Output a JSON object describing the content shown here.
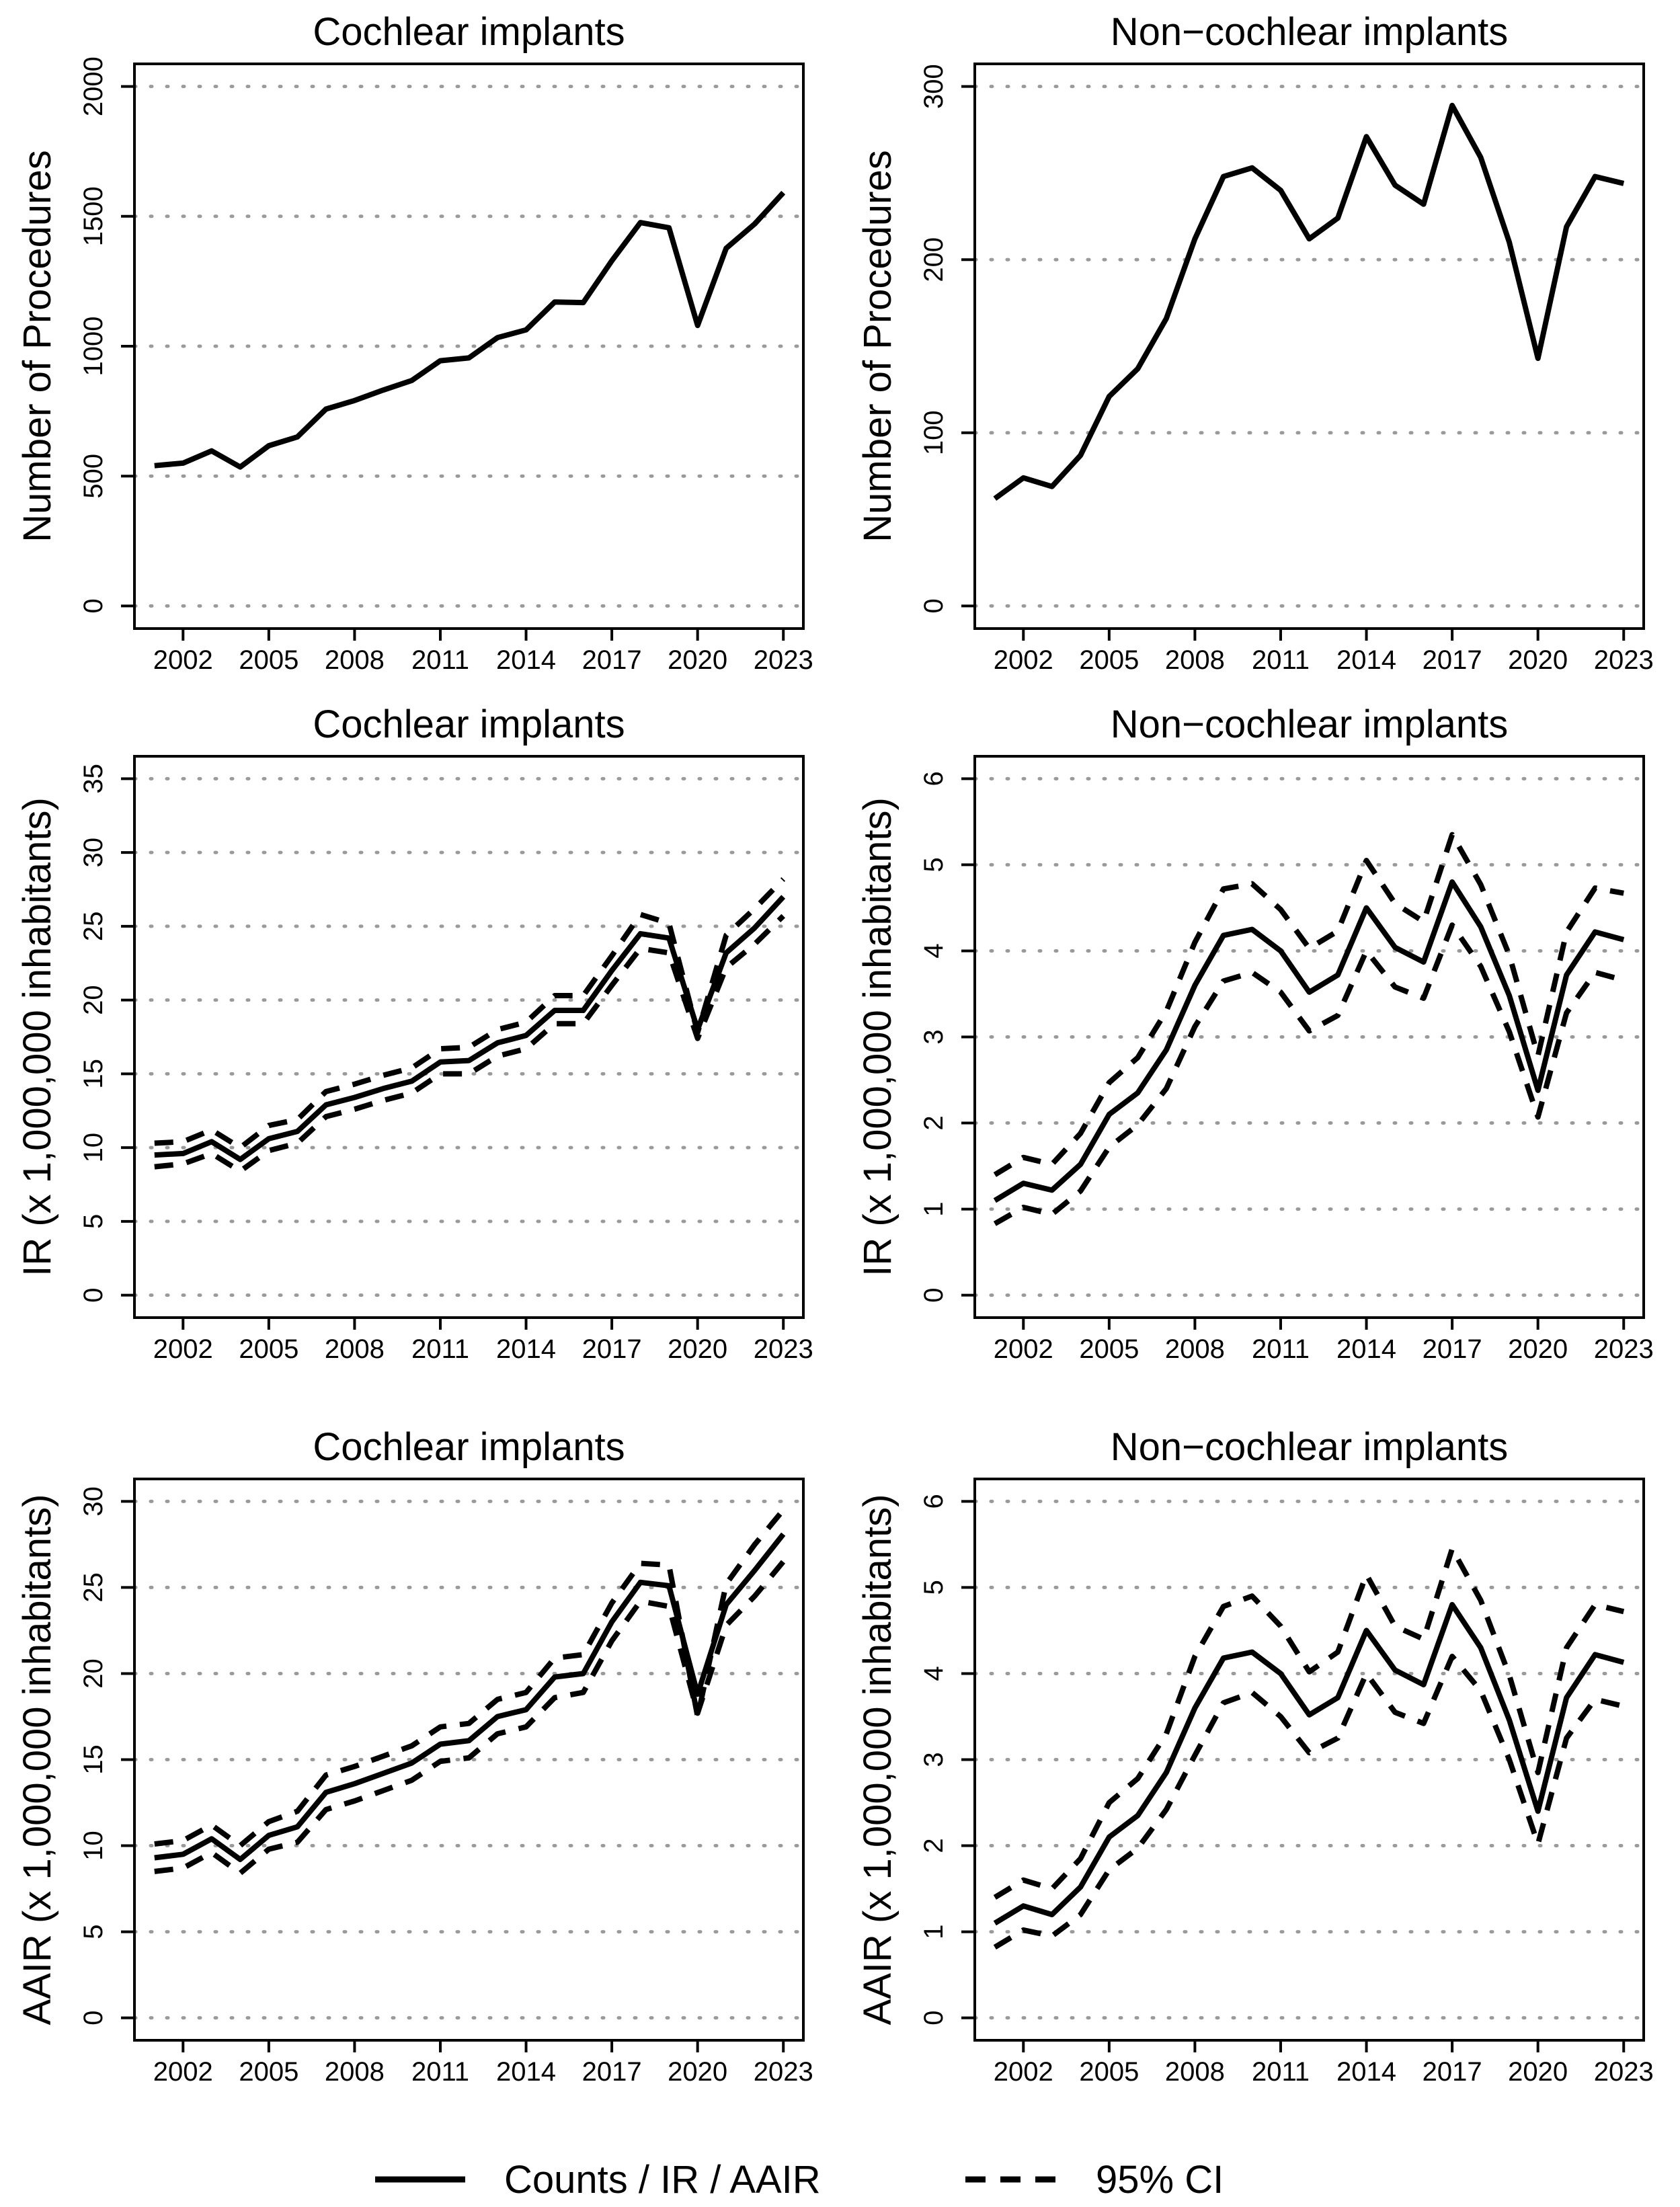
{
  "legend": {
    "solid_label": "Counts / IR / AAIR",
    "dashed_label": "95% CI"
  },
  "chart_data": [
    {
      "type": "line",
      "title": "Cochlear implants",
      "ylabel": "Number of Procedures",
      "xlabel": "",
      "ylim": [
        0,
        2000
      ],
      "yticks": [
        0,
        500,
        1000,
        1500,
        2000
      ],
      "xlim": [
        2000,
        2023.5
      ],
      "xticks": [
        2002,
        2005,
        2008,
        2011,
        2014,
        2017,
        2020,
        2023
      ],
      "x": [
        2001,
        2002,
        2003,
        2004,
        2005,
        2006,
        2007,
        2008,
        2009,
        2010,
        2011,
        2012,
        2013,
        2014,
        2015,
        2016,
        2017,
        2018,
        2019,
        2020,
        2021,
        2022,
        2023
      ],
      "series": [
        {
          "name": "Counts",
          "style": "solid",
          "values": [
            540,
            550,
            597,
            535,
            617,
            651,
            758,
            791,
            831,
            868,
            944,
            955,
            1033,
            1063,
            1170,
            1168,
            1329,
            1476,
            1456,
            1080,
            1377,
            1471,
            1591
          ]
        }
      ]
    },
    {
      "type": "line",
      "title": "Non−cochlear implants",
      "ylabel": "Number of Procedures",
      "xlabel": "",
      "ylim": [
        0,
        300
      ],
      "yticks": [
        0,
        100,
        200,
        300
      ],
      "xlim": [
        2000,
        2023.5
      ],
      "xticks": [
        2002,
        2005,
        2008,
        2011,
        2014,
        2017,
        2020,
        2023
      ],
      "x": [
        2001,
        2002,
        2003,
        2004,
        2005,
        2006,
        2007,
        2008,
        2009,
        2010,
        2011,
        2012,
        2013,
        2014,
        2015,
        2016,
        2017,
        2018,
        2019,
        2020,
        2021,
        2022,
        2023
      ],
      "series": [
        {
          "name": "Counts",
          "style": "solid",
          "values": [
            62,
            74,
            69,
            87,
            121,
            137,
            166,
            212,
            248,
            253,
            240,
            212,
            224,
            271,
            243,
            232,
            289,
            259,
            210,
            143,
            219,
            248,
            244
          ]
        }
      ]
    },
    {
      "type": "line",
      "title": "Cochlear implants",
      "ylabel": "IR (x 1,000,000 inhabitants)",
      "xlabel": "",
      "ylim": [
        0,
        35
      ],
      "yticks": [
        0,
        5,
        10,
        15,
        20,
        25,
        30,
        35
      ],
      "xlim": [
        2000,
        2023.5
      ],
      "xticks": [
        2002,
        2005,
        2008,
        2011,
        2014,
        2017,
        2020,
        2023
      ],
      "x": [
        2001,
        2002,
        2003,
        2004,
        2005,
        2006,
        2007,
        2008,
        2009,
        2010,
        2011,
        2012,
        2013,
        2014,
        2015,
        2016,
        2017,
        2018,
        2019,
        2020,
        2021,
        2022,
        2023
      ],
      "series": [
        {
          "name": "IR",
          "style": "solid",
          "values": [
            9.5,
            9.6,
            10.4,
            9.2,
            10.6,
            11.1,
            12.9,
            13.4,
            14.0,
            14.5,
            15.8,
            15.9,
            17.1,
            17.6,
            19.3,
            19.3,
            22.0,
            24.5,
            24.2,
            18.0,
            23.2,
            24.9,
            27.0
          ]
        },
        {
          "name": "95% CI lower",
          "style": "dashed",
          "values": [
            8.7,
            8.9,
            9.6,
            8.4,
            9.8,
            10.3,
            12.1,
            12.6,
            13.2,
            13.7,
            15.0,
            15.0,
            16.2,
            16.7,
            18.4,
            18.4,
            21.0,
            23.5,
            23.2,
            17.4,
            22.2,
            23.8,
            25.7
          ]
        },
        {
          "name": "95% CI upper",
          "style": "dashed",
          "values": [
            10.3,
            10.4,
            11.2,
            10.0,
            11.5,
            11.9,
            13.8,
            14.3,
            14.9,
            15.4,
            16.7,
            16.8,
            18.0,
            18.5,
            20.3,
            20.3,
            23.0,
            25.8,
            25.2,
            17.8,
            24.4,
            26.2,
            28.2
          ]
        }
      ]
    },
    {
      "type": "line",
      "title": "Non−cochlear implants",
      "ylabel": "IR (x 1,000,000 inhabitants)",
      "xlabel": "",
      "ylim": [
        0,
        6
      ],
      "yticks": [
        0,
        1,
        2,
        3,
        4,
        5,
        6
      ],
      "xlim": [
        2000,
        2023.5
      ],
      "xticks": [
        2002,
        2005,
        2008,
        2011,
        2014,
        2017,
        2020,
        2023
      ],
      "x": [
        2001,
        2002,
        2003,
        2004,
        2005,
        2006,
        2007,
        2008,
        2009,
        2010,
        2011,
        2012,
        2013,
        2014,
        2015,
        2016,
        2017,
        2018,
        2019,
        2020,
        2021,
        2022,
        2023
      ],
      "series": [
        {
          "name": "IR",
          "style": "solid",
          "values": [
            1.1,
            1.3,
            1.22,
            1.52,
            2.1,
            2.35,
            2.85,
            3.6,
            4.18,
            4.25,
            4.0,
            3.52,
            3.72,
            4.5,
            4.04,
            3.87,
            4.8,
            4.28,
            3.48,
            2.38,
            3.72,
            4.22,
            4.13
          ]
        },
        {
          "name": "95% CI lower",
          "style": "dashed",
          "values": [
            0.83,
            1.02,
            0.94,
            1.21,
            1.72,
            1.98,
            2.4,
            3.12,
            3.65,
            3.75,
            3.52,
            3.07,
            3.25,
            4.0,
            3.58,
            3.45,
            4.3,
            3.82,
            3.06,
            2.07,
            3.28,
            3.75,
            3.66
          ]
        },
        {
          "name": "95% CI upper",
          "style": "dashed",
          "values": [
            1.4,
            1.6,
            1.52,
            1.88,
            2.47,
            2.76,
            3.3,
            4.1,
            4.72,
            4.78,
            4.48,
            4.03,
            4.23,
            5.05,
            4.55,
            4.34,
            5.35,
            4.77,
            3.95,
            2.78,
            4.22,
            4.73,
            4.67
          ]
        }
      ]
    },
    {
      "type": "line",
      "title": "Cochlear implants",
      "ylabel": "AAIR (x 1,000,000 inhabitants)",
      "xlabel": "",
      "ylim": [
        0,
        30
      ],
      "yticks": [
        0,
        5,
        10,
        15,
        20,
        25,
        30
      ],
      "xlim": [
        2000,
        2023.5
      ],
      "xticks": [
        2002,
        2005,
        2008,
        2011,
        2014,
        2017,
        2020,
        2023
      ],
      "x": [
        2001,
        2002,
        2003,
        2004,
        2005,
        2006,
        2007,
        2008,
        2009,
        2010,
        2011,
        2012,
        2013,
        2014,
        2015,
        2016,
        2017,
        2018,
        2019,
        2020,
        2021,
        2022,
        2023
      ],
      "series": [
        {
          "name": "AAIR",
          "style": "solid",
          "values": [
            9.3,
            9.5,
            10.4,
            9.2,
            10.6,
            11.1,
            13.1,
            13.6,
            14.2,
            14.8,
            15.9,
            16.1,
            17.5,
            17.9,
            19.8,
            20.0,
            23.0,
            25.3,
            25.1,
            18.8,
            24.0,
            26.0,
            28.1
          ]
        },
        {
          "name": "95% CI lower",
          "style": "dashed",
          "values": [
            8.5,
            8.7,
            9.6,
            8.4,
            9.8,
            10.2,
            12.1,
            12.6,
            13.2,
            13.8,
            14.9,
            15.1,
            16.5,
            16.9,
            18.6,
            18.9,
            21.9,
            24.2,
            23.9,
            17.7,
            22.8,
            24.5,
            26.5
          ]
        },
        {
          "name": "95% CI upper",
          "style": "dashed",
          "values": [
            10.1,
            10.3,
            11.2,
            10.0,
            11.4,
            12.0,
            14.1,
            14.6,
            15.2,
            15.8,
            16.9,
            17.1,
            18.5,
            18.9,
            20.9,
            21.1,
            24.1,
            26.4,
            26.3,
            17.5,
            25.2,
            27.5,
            29.5
          ]
        }
      ]
    },
    {
      "type": "line",
      "title": "Non−cochlear implants",
      "ylabel": "AAIR (x 1,000,000 inhabitants)",
      "xlabel": "",
      "ylim": [
        0,
        6
      ],
      "yticks": [
        0,
        1,
        2,
        3,
        4,
        5,
        6
      ],
      "xlim": [
        2000,
        2023.5
      ],
      "xticks": [
        2002,
        2005,
        2008,
        2011,
        2014,
        2017,
        2020,
        2023
      ],
      "x": [
        2001,
        2002,
        2003,
        2004,
        2005,
        2006,
        2007,
        2008,
        2009,
        2010,
        2011,
        2012,
        2013,
        2014,
        2015,
        2016,
        2017,
        2018,
        2019,
        2020,
        2021,
        2022,
        2023
      ],
      "series": [
        {
          "name": "AAIR",
          "style": "solid",
          "values": [
            1.1,
            1.3,
            1.2,
            1.52,
            2.1,
            2.35,
            2.85,
            3.6,
            4.18,
            4.25,
            4.0,
            3.52,
            3.72,
            4.5,
            4.04,
            3.87,
            4.8,
            4.3,
            3.46,
            2.4,
            3.72,
            4.22,
            4.13
          ]
        },
        {
          "name": "95% CI lower",
          "style": "dashed",
          "values": [
            0.82,
            1.02,
            0.95,
            1.2,
            1.72,
            1.97,
            2.42,
            3.05,
            3.66,
            3.78,
            3.5,
            3.08,
            3.25,
            4.0,
            3.55,
            3.42,
            4.2,
            3.8,
            3.0,
            2.02,
            3.25,
            3.7,
            3.62
          ]
        },
        {
          "name": "95% CI upper",
          "style": "dashed",
          "values": [
            1.4,
            1.6,
            1.5,
            1.85,
            2.5,
            2.78,
            3.3,
            4.2,
            4.78,
            4.9,
            4.55,
            4.02,
            4.25,
            5.15,
            4.55,
            4.4,
            5.45,
            4.85,
            3.98,
            2.85,
            4.3,
            4.8,
            4.72
          ]
        }
      ]
    }
  ]
}
